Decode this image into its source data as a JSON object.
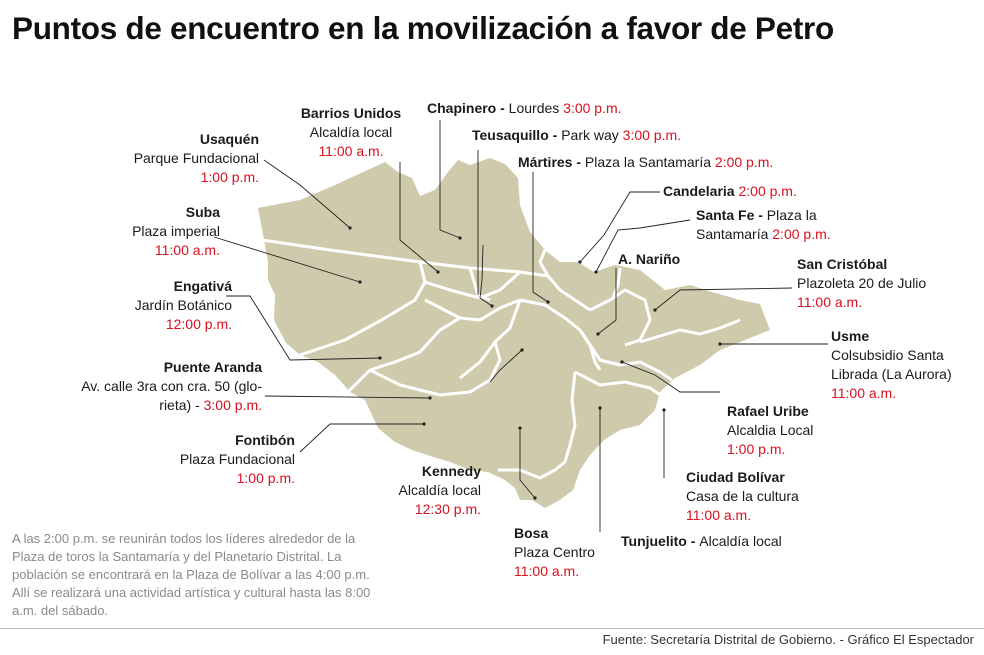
{
  "title": "Puntos de encuentro en la movilización a favor de Petro",
  "colors": {
    "land": "#cfcaac",
    "border": "#ffffff",
    "time": "#d6101e",
    "leader": "#222222"
  },
  "labels": {
    "usaquen": {
      "name": "Usaquén",
      "place": "Parque Fundacional",
      "time": "1:00 p.m."
    },
    "barrios_unidos": {
      "name": "Barrios Unidos",
      "place": "Alcaldía local",
      "time": "11:00 a.m."
    },
    "chapinero": {
      "name": "Chapinero - ",
      "place": "Lourdes ",
      "time": "3:00 p.m."
    },
    "teusaquillo": {
      "name": "Teusaquillo - ",
      "place": "Park way ",
      "time": "3:00 p.m."
    },
    "martires": {
      "name": "Mártires - ",
      "place": "Plaza la Santamaría ",
      "time": "2:00 p.m."
    },
    "candelaria": {
      "name": "Candelaria ",
      "time": "2:00 p.m."
    },
    "santa_fe": {
      "name": "Santa Fe - ",
      "place1": "Plaza la",
      "place2": "Santamaría ",
      "time": "2:00 p.m."
    },
    "antonio_narino": {
      "name": "A. Nariño"
    },
    "suba": {
      "name": "Suba",
      "place": "Plaza imperial",
      "time": "11:00 a.m."
    },
    "engativa": {
      "name": "Engativá",
      "place": "Jardín Botánico",
      "time": "12:00 p.m."
    },
    "san_cristobal": {
      "name": "San Cristóbal",
      "place": "Plazoleta 20 de Julio",
      "time": "11:00 a.m."
    },
    "usme": {
      "name": "Usme",
      "place1": "Colsubsidio Santa",
      "place2": "Librada (La Aurora)",
      "time": "11:00 a.m."
    },
    "puente_aranda": {
      "name": "Puente Aranda",
      "place1": "Av. calle 3ra con cra. 50 (glo-",
      "place2": "rieta) - ",
      "time": "3:00 p.m."
    },
    "rafael_uribe": {
      "name": "Rafael Uribe",
      "place": "Alcaldia Local",
      "time": "1:00 p.m."
    },
    "fontibon": {
      "name": "Fontibón",
      "place": "Plaza Fundacional",
      "time": "1:00 p.m."
    },
    "kennedy": {
      "name": "Kennedy",
      "place": "Alcaldía local",
      "time": "12:30 p.m."
    },
    "ciudad_bolivar": {
      "name": "Ciudad Bolívar",
      "place": "Casa de la cultura",
      "time": "11:00 a.m."
    },
    "bosa": {
      "name": "Bosa",
      "place": "Plaza Centro",
      "time": "11:00 a.m."
    },
    "tunjuelito": {
      "name": "Tunjuelito - ",
      "place": "Alcaldía local"
    }
  },
  "note": "A las 2:00 p.m. se reunirán todos los líderes alrededor de la Plaza de toros la Santamaría y  del Planetario Distrital.  La población se encontrará en la Plaza de Bolívar a las 4:00 p.m. Allí  se realizará una actividad artística y cultural hasta las 8:00 a.m. del sábado.",
  "source": "Fuente: Secretaría Distrital de Gobierno. - Gráfico El Espectador"
}
